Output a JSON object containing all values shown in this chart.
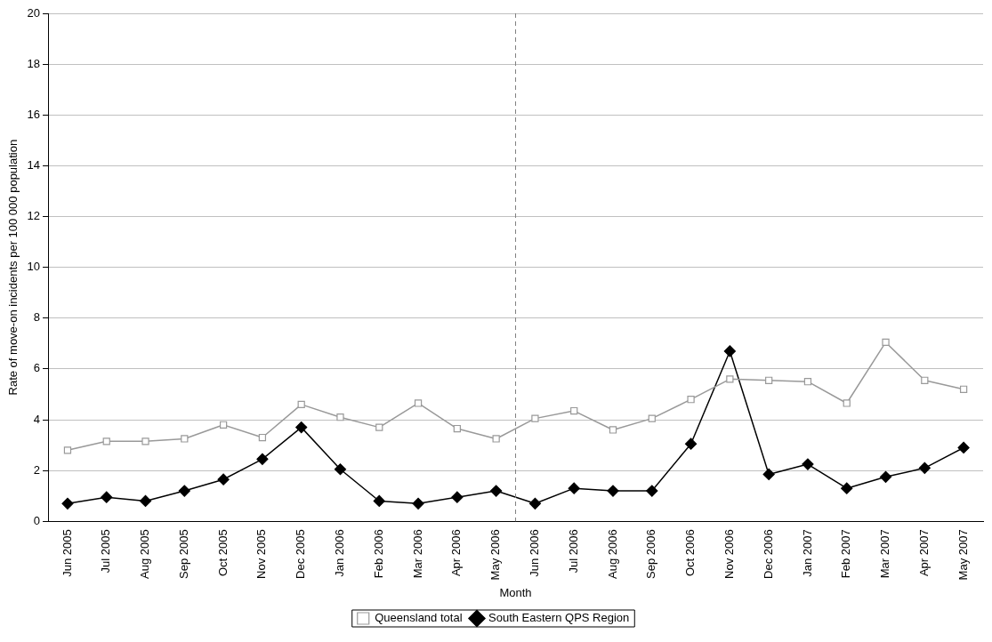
{
  "chart_data": {
    "type": "line",
    "xlabel": "Month",
    "ylabel": "Rate of move-on incidents per 100 000 population",
    "categories": [
      "Jun 2005",
      "Jul 2005",
      "Aug 2005",
      "Sep 2005",
      "Oct 2005",
      "Nov 2005",
      "Dec 2005",
      "Jan 2006",
      "Feb 2006",
      "Mar 2006",
      "Apr 2006",
      "May 2006",
      "Jun 2006",
      "Jul 2006",
      "Aug 2006",
      "Sep 2006",
      "Oct 2006",
      "Nov 2006",
      "Dec 2006",
      "Jan 2007",
      "Feb 2007",
      "Mar 2007",
      "Apr 2007",
      "May 2007"
    ],
    "series": [
      {
        "name": "Queensland total",
        "color": "#999999",
        "marker": "square",
        "values": [
          2.8,
          3.15,
          3.15,
          3.25,
          3.8,
          3.3,
          4.6,
          4.1,
          3.7,
          4.65,
          3.65,
          3.25,
          4.05,
          4.35,
          3.6,
          4.05,
          4.8,
          5.6,
          5.55,
          5.5,
          4.65,
          7.05,
          5.55,
          5.2
        ]
      },
      {
        "name": "South Eastern QPS Region",
        "color": "#000000",
        "marker": "diamond",
        "values": [
          0.7,
          0.95,
          0.8,
          1.2,
          1.65,
          2.45,
          3.7,
          2.05,
          0.8,
          0.7,
          0.95,
          1.2,
          0.7,
          1.3,
          1.2,
          1.2,
          3.05,
          6.7,
          1.85,
          2.25,
          1.3,
          1.75,
          2.1,
          2.9
        ]
      }
    ],
    "ylim": [
      0,
      20
    ],
    "yticks": [
      0,
      2,
      4,
      6,
      8,
      10,
      12,
      14,
      16,
      18,
      20
    ],
    "grid": "y",
    "legend": "bottom",
    "ref_lines": [
      {
        "axis": "x",
        "value": "Jun 2006",
        "color": "#808080",
        "line_style": "dashed"
      }
    ]
  }
}
